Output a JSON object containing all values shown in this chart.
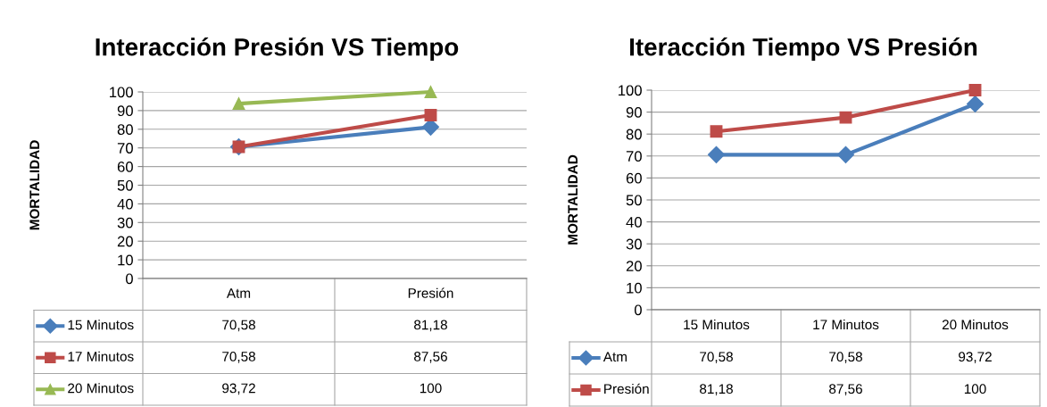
{
  "chart_data": [
    {
      "type": "line",
      "title": "Interacción Presión VS Tiempo",
      "ylabel": "MORTALIDAD",
      "categories": [
        "Atm",
        "Presión"
      ],
      "ylim": [
        0,
        100
      ],
      "yticks": [
        0,
        10,
        20,
        30,
        40,
        50,
        60,
        70,
        80,
        90,
        100
      ],
      "grid": "y",
      "legend": "bottom",
      "series": [
        {
          "name": "15 Minutos",
          "color": "#4a7ebb",
          "marker": "diamond",
          "values": [
            70.58,
            81.18
          ],
          "value_labels": [
            "70,58",
            "81,18"
          ]
        },
        {
          "name": "17 Minutos",
          "color": "#be4b48",
          "marker": "square",
          "values": [
            70.58,
            87.56
          ],
          "value_labels": [
            "70,58",
            "87,56"
          ]
        },
        {
          "name": "20 Minutos",
          "color": "#98b954",
          "marker": "triangle",
          "values": [
            93.72,
            100
          ],
          "value_labels": [
            "93,72",
            "100"
          ]
        }
      ]
    },
    {
      "type": "line",
      "title": "Iteracción Tiempo VS Presión",
      "ylabel": "MORTALIDAD",
      "categories": [
        "15 Minutos",
        "17 Minutos",
        "20 Minutos"
      ],
      "ylim": [
        0,
        100
      ],
      "yticks": [
        0,
        10,
        20,
        30,
        40,
        50,
        60,
        70,
        80,
        90,
        100
      ],
      "grid": "y",
      "legend": "bottom",
      "series": [
        {
          "name": "Atm",
          "color": "#4a7ebb",
          "marker": "diamond",
          "values": [
            70.58,
            70.58,
            93.72
          ],
          "value_labels": [
            "70,58",
            "70,58",
            "93,72"
          ]
        },
        {
          "name": "Presión",
          "color": "#be4b48",
          "marker": "square",
          "values": [
            81.18,
            87.56,
            100
          ],
          "value_labels": [
            "81,18",
            "87,56",
            "100"
          ]
        }
      ]
    }
  ]
}
